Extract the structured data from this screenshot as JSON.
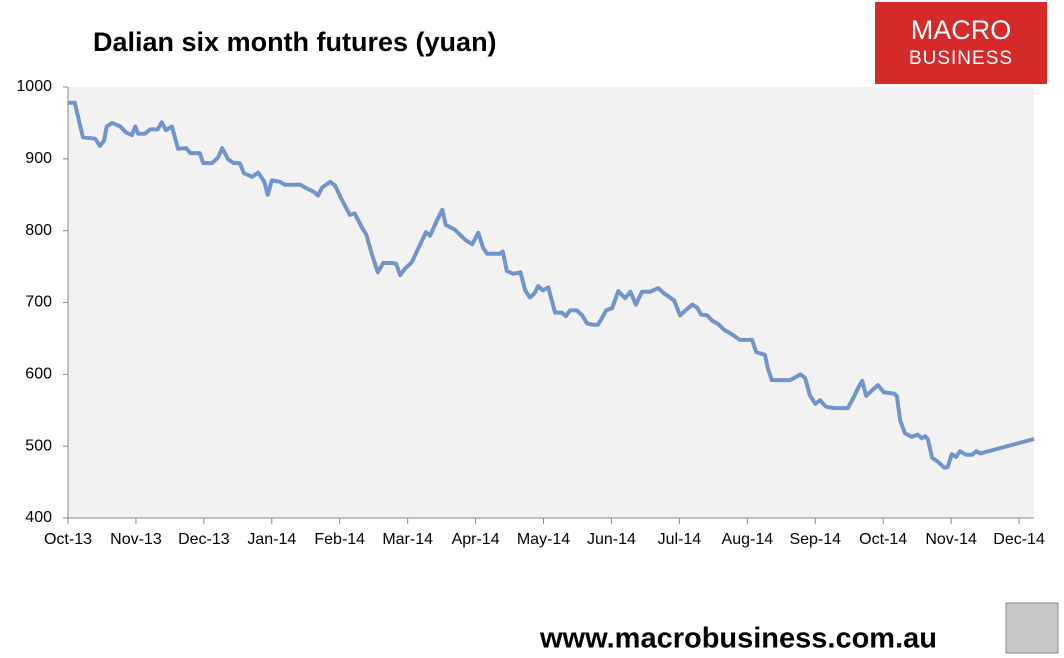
{
  "chart_data": {
    "type": "line",
    "title": "Dalian six month futures (yuan)",
    "x": [
      0,
      0.1,
      0.22,
      0.4,
      0.47,
      0.53,
      0.57,
      0.65,
      0.77,
      0.85,
      0.94,
      0.99,
      1.03,
      1.13,
      1.21,
      1.32,
      1.38,
      1.44,
      1.53,
      1.62,
      1.74,
      1.8,
      1.94,
      1.99,
      2.12,
      2.21,
      2.27,
      2.36,
      2.44,
      2.53,
      2.59,
      2.71,
      2.8,
      2.89,
      2.94,
      3.0,
      3.12,
      3.19,
      3.42,
      3.49,
      3.62,
      3.68,
      3.74,
      3.86,
      3.93,
      4.03,
      4.15,
      4.22,
      4.33,
      4.39,
      4.47,
      4.56,
      4.64,
      4.77,
      4.83,
      4.89,
      4.96,
      5.06,
      5.18,
      5.27,
      5.33,
      5.42,
      5.51,
      5.56,
      5.7,
      5.85,
      5.95,
      6.04,
      6.11,
      6.17,
      6.36,
      6.4,
      6.46,
      6.55,
      6.66,
      6.73,
      6.8,
      6.87,
      6.92,
      6.99,
      7.07,
      7.17,
      7.27,
      7.33,
      7.39,
      7.49,
      7.57,
      7.64,
      7.72,
      7.8,
      7.86,
      7.92,
      8.01,
      8.1,
      8.2,
      8.28,
      8.36,
      8.45,
      8.57,
      8.69,
      8.77,
      8.83,
      8.92,
      9.01,
      9.09,
      9.19,
      9.26,
      9.32,
      9.41,
      9.48,
      9.57,
      9.66,
      9.77,
      9.89,
      10.07,
      10.13,
      10.26,
      10.3,
      10.36,
      10.56,
      10.63,
      10.71,
      10.78,
      10.85,
      10.92,
      11.0,
      11.07,
      11.16,
      11.28,
      11.48,
      11.56,
      11.63,
      11.69,
      11.75,
      11.84,
      11.92,
      12.01,
      12.16,
      12.2,
      12.25,
      12.32,
      12.42,
      12.51,
      12.57,
      12.62,
      12.66,
      12.72,
      12.81,
      12.9,
      12.95,
      13.01,
      13.07,
      13.13,
      13.22,
      13.31,
      13.37,
      13.43,
      14.22
    ],
    "values": [
      978,
      978,
      930,
      928,
      918,
      925,
      945,
      950,
      945,
      937,
      933,
      945,
      935,
      935,
      941,
      941,
      951,
      940,
      945,
      914,
      915,
      908,
      908,
      894,
      894,
      902,
      915,
      899,
      894,
      894,
      880,
      875,
      881,
      868,
      850,
      870,
      868,
      864,
      864,
      860,
      854,
      849,
      860,
      868,
      863,
      843,
      822,
      824,
      804,
      795,
      768,
      742,
      755,
      755,
      754,
      738,
      747,
      756,
      780,
      798,
      793,
      812,
      829,
      808,
      801,
      787,
      781,
      797,
      776,
      768,
      768,
      771,
      744,
      740,
      742,
      717,
      707,
      713,
      723,
      717,
      721,
      686,
      686,
      681,
      689,
      689,
      682,
      671,
      669,
      669,
      678,
      689,
      692,
      716,
      706,
      715,
      697,
      715,
      715,
      720,
      713,
      709,
      703,
      682,
      689,
      697,
      693,
      683,
      682,
      675,
      670,
      662,
      656,
      648,
      648,
      631,
      627,
      609,
      592,
      592,
      592,
      596,
      600,
      595,
      571,
      559,
      564,
      555,
      553,
      553,
      567,
      581,
      591,
      570,
      578,
      585,
      575,
      573,
      570,
      536,
      518,
      513,
      516,
      511,
      514,
      509,
      484,
      478,
      470,
      471,
      489,
      485,
      493,
      488,
      488,
      493,
      490,
      510
    ],
    "color": "#7195cb",
    "xlim": [
      0,
      14.22
    ],
    "xticks": [
      {
        "value": 0,
        "label": "Oct-13"
      },
      {
        "value": 1,
        "label": "Nov-13"
      },
      {
        "value": 2,
        "label": "Dec-13"
      },
      {
        "value": 3,
        "label": "Jan-14"
      },
      {
        "value": 4,
        "label": "Feb-14"
      },
      {
        "value": 5,
        "label": "Mar-14"
      },
      {
        "value": 6,
        "label": "Apr-14"
      },
      {
        "value": 7,
        "label": "May-14"
      },
      {
        "value": 8,
        "label": "Jun-14"
      },
      {
        "value": 9,
        "label": "Jul-14"
      },
      {
        "value": 10,
        "label": "Aug-14"
      },
      {
        "value": 11,
        "label": "Sep-14"
      },
      {
        "value": 12,
        "label": "Oct-14"
      },
      {
        "value": 13,
        "label": "Nov-14"
      },
      {
        "value": 14,
        "label": "Dec-14"
      }
    ],
    "ylim": [
      400,
      1000
    ],
    "yticks": [
      400,
      500,
      600,
      700,
      800,
      900,
      1000
    ],
    "grid": false
  },
  "logo": {
    "line1": "MACRO",
    "line2": "BUSINESS"
  },
  "footer": "www.macrobusiness.com.au"
}
